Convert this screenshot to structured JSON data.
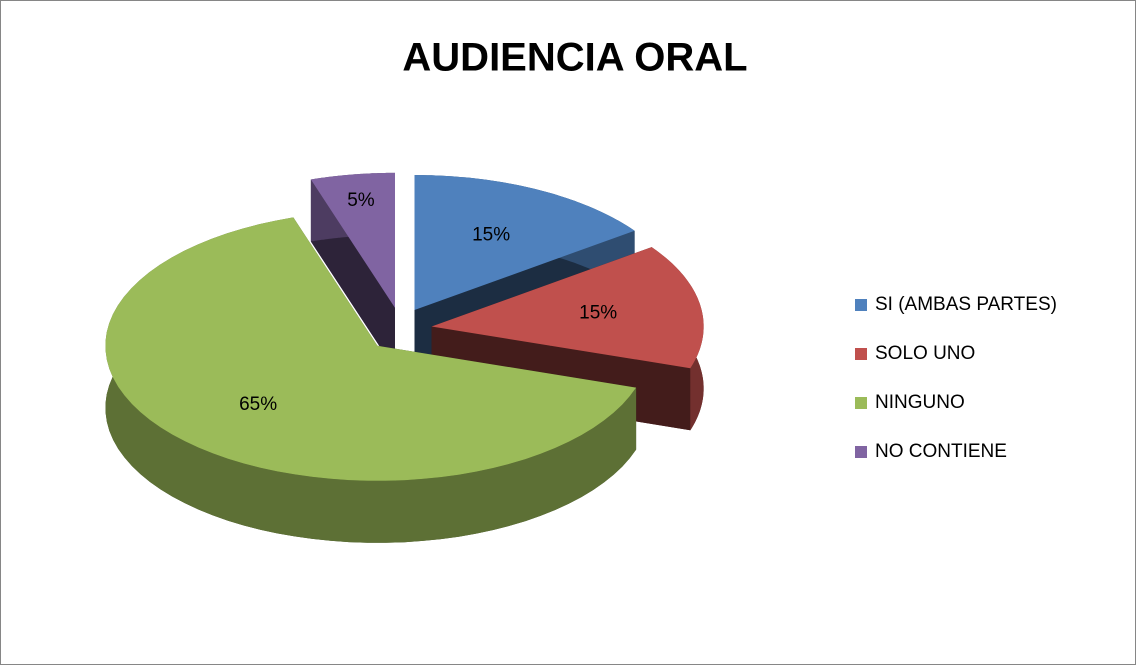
{
  "chart_data": {
    "type": "pie",
    "title": "AUDIENCIA ORAL",
    "categories": [
      "SI (AMBAS PARTES)",
      "SOLO UNO",
      "NINGUNO",
      "NO CONTIENE"
    ],
    "values": [
      15,
      15,
      65,
      5
    ],
    "value_labels": [
      "15%",
      "15%",
      "65%",
      "5%"
    ],
    "colors": [
      "#4f81bd",
      "#c0504d",
      "#9bbb59",
      "#8064a2"
    ],
    "legend": "right"
  }
}
